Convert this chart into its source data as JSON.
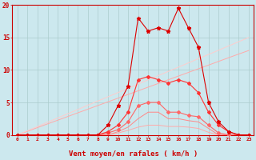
{
  "x": [
    0,
    1,
    2,
    3,
    4,
    5,
    6,
    7,
    8,
    9,
    10,
    11,
    12,
    13,
    14,
    15,
    16,
    17,
    18,
    19,
    20,
    21,
    22,
    23
  ],
  "line_straight1": [
    0,
    0.56,
    1.13,
    1.7,
    2.26,
    2.83,
    3.4,
    3.96,
    4.53,
    5.09,
    5.66,
    6.23,
    6.79,
    7.36,
    7.92,
    8.49,
    9.06,
    9.62,
    10.19,
    10.75,
    11.32,
    11.89,
    12.45,
    13.0
  ],
  "line_straight2": [
    0,
    0.65,
    1.3,
    1.96,
    2.61,
    3.26,
    3.91,
    4.57,
    5.22,
    5.87,
    6.52,
    7.17,
    7.83,
    8.48,
    9.13,
    9.78,
    10.43,
    11.09,
    11.74,
    12.39,
    13.04,
    13.7,
    14.35,
    15.0
  ],
  "line3": [
    0,
    0,
    0,
    0,
    0,
    0,
    0,
    0,
    0,
    0,
    0.3,
    0.7,
    1.2,
    1.5,
    1.5,
    1.3,
    1.3,
    1.2,
    1.0,
    0.4,
    0,
    0,
    0,
    0
  ],
  "line4": [
    0,
    0,
    0,
    0,
    0,
    0,
    0,
    0,
    0,
    0,
    0.5,
    1.2,
    2.5,
    3.5,
    3.5,
    2.5,
    2.5,
    2.2,
    2.0,
    1.0,
    0,
    0,
    0,
    0
  ],
  "line5": [
    0,
    0,
    0,
    0,
    0,
    0,
    0,
    0,
    0,
    0.3,
    0.8,
    2.0,
    4.5,
    5.0,
    5.0,
    3.5,
    3.5,
    3.0,
    2.8,
    1.5,
    0.3,
    0,
    0,
    0
  ],
  "line6": [
    0,
    0,
    0,
    0,
    0,
    0,
    0,
    0,
    0,
    0.5,
    1.5,
    3.5,
    8.5,
    9.0,
    8.5,
    8.0,
    8.5,
    8.0,
    6.5,
    3.5,
    1.5,
    0.5,
    0,
    0
  ],
  "line7": [
    0,
    0,
    0,
    0,
    0,
    0,
    0,
    0,
    0,
    1.5,
    4.5,
    7.5,
    18.0,
    16.0,
    16.5,
    16.0,
    19.5,
    16.5,
    13.5,
    5.0,
    2.0,
    0.5,
    0,
    0
  ],
  "bg_color": "#cce8ee",
  "grid_color": "#aacccc",
  "xlabel": "Vent moyen/en rafales ( km/h )",
  "ylim": [
    0,
    20
  ],
  "xlim": [
    -0.5,
    23.5
  ],
  "arrow_angles": [
    270,
    270,
    270,
    270,
    270,
    270,
    270,
    270,
    270,
    270,
    258,
    252,
    270,
    248,
    252,
    258,
    252,
    258,
    252,
    270,
    270,
    270,
    270,
    270
  ]
}
